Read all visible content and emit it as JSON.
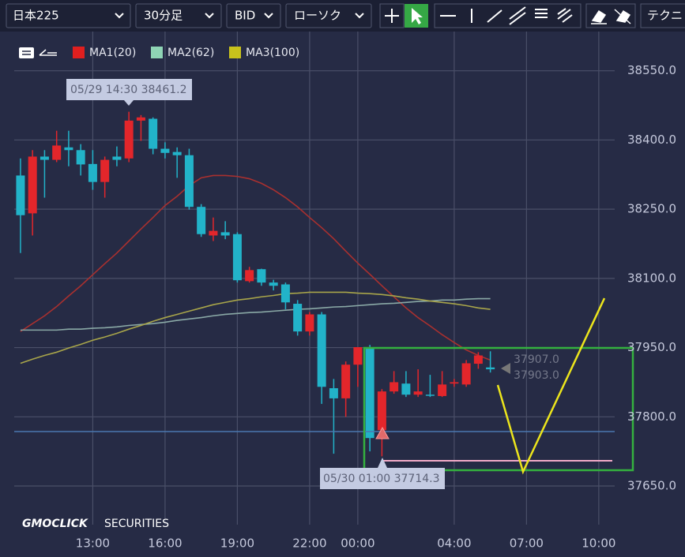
{
  "toolbar": {
    "symbol": "日本225",
    "timeframe": "30分足",
    "price_type": "BID",
    "chart_type": "ローソク",
    "technical": "テクニ"
  },
  "logo": {
    "brand": "GMOCLICK",
    "suffix": "SECURITIES"
  },
  "chart_data": {
    "type": "candlestick",
    "x": [
      -14,
      -13.5,
      -13,
      -12.5,
      -12,
      -11.5,
      -11,
      -10.5,
      -10,
      -9.5,
      -9,
      -8.5,
      -8,
      -7.5,
      -7,
      -6.5,
      -6,
      -5.5,
      -5,
      -4.5,
      -4,
      -3.5,
      -3,
      -2.5,
      -2,
      -1.5,
      -1,
      -0.5,
      0,
      0.5,
      1,
      1.5,
      2,
      2.5,
      3,
      3.5,
      4,
      4.5,
      5,
      5.5
    ],
    "open": [
      38323,
      38241,
      38364,
      38357,
      38384,
      38378,
      38348,
      38309,
      38364,
      38360,
      38442,
      38446,
      38381,
      38374,
      38367,
      38255,
      38193,
      38200,
      38196,
      38094,
      38120,
      38091,
      38087,
      38045,
      37985,
      38022,
      37862,
      37840,
      37913,
      37951,
      37771,
      37855,
      37872,
      37848,
      37848,
      37845,
      37872,
      37870,
      37915,
      37907
    ],
    "high": [
      38360,
      38378,
      38378,
      38420,
      38420,
      38391,
      38378,
      38364,
      38386,
      38461.2,
      38454,
      38449,
      38395,
      38384,
      38381,
      38261,
      38232,
      38224,
      38200,
      38125,
      38121,
      38097,
      38091,
      38053,
      38027,
      38027,
      37882,
      37920,
      37951,
      37956,
      37860,
      37899,
      37899,
      37903,
      37891,
      37899,
      37882,
      37923,
      37940,
      37942
    ],
    "low": [
      38155,
      38193,
      38275,
      38352,
      38343,
      38323,
      38292,
      38275,
      38343,
      38352,
      38398,
      38369,
      38360,
      38318,
      38249,
      38190,
      38181,
      38185,
      38091,
      38091,
      38084,
      38074,
      38033,
      37976,
      37976,
      37828,
      37720,
      37800,
      37865,
      37725,
      37714.3,
      37850,
      37843,
      37843,
      37843,
      37843,
      37865,
      37865,
      37904,
      37896
    ],
    "close": [
      38237,
      38364,
      38357,
      38388,
      38378,
      38347,
      38309,
      38357,
      38357,
      38442,
      38449,
      38381,
      38372,
      38367,
      38255,
      38196,
      38203,
      38193,
      38096,
      38118,
      38091,
      38084,
      38048,
      37985,
      38022,
      37865,
      37840,
      37913,
      37951,
      37754,
      37855,
      37875,
      37848,
      37855,
      37847,
      37870,
      37875,
      37916,
      37933,
      37903
    ],
    "up_color": "#e3262b",
    "down_color": "#22b3c9",
    "series": [
      {
        "name": "MA1(20)",
        "color": "#e01f1f",
        "line_color": "#a9302f",
        "values": [
          37985,
          38002,
          38019,
          38039,
          38062,
          38084,
          38108,
          38132,
          38155,
          38181,
          38207,
          38232,
          38258,
          38278,
          38301,
          38318,
          38323,
          38323,
          38321,
          38316,
          38306,
          38292,
          38275,
          38255,
          38232,
          38210,
          38186,
          38159,
          38133,
          38109,
          38084,
          38060,
          38036,
          38015,
          37997,
          37978,
          37961,
          37945,
          37933,
          37923
        ]
      },
      {
        "name": "MA2(62)",
        "color": "#8fd4b5",
        "line_color": "#8aa9a6",
        "values": [
          37988,
          37988,
          37988,
          37988,
          37990,
          37990,
          37992,
          37993,
          37995,
          37998,
          38000,
          38002,
          38005,
          38009,
          38012,
          38015,
          38019,
          38022,
          38024,
          38026,
          38027,
          38029,
          38031,
          38033,
          38034,
          38036,
          38038,
          38039,
          38041,
          38043,
          38045,
          38046,
          38048,
          38050,
          38051,
          38053,
          38053,
          38055,
          38056,
          38056
        ]
      },
      {
        "name": "MA3(100)",
        "color": "#c8c21c",
        "line_color": "#a8a54a",
        "values": [
          37916,
          37925,
          37933,
          37940,
          37949,
          37957,
          37966,
          37973,
          37981,
          37990,
          37998,
          38007,
          38015,
          38022,
          38029,
          38036,
          38043,
          38048,
          38053,
          38056,
          38060,
          38063,
          38067,
          38068,
          38070,
          38070,
          38070,
          38070,
          38068,
          38067,
          38065,
          38062,
          38058,
          38055,
          38051,
          38048,
          38045,
          38041,
          38036,
          38033
        ]
      }
    ],
    "xlim": [
      -14.26,
      10.66
    ],
    "xticks": [
      {
        "value": -11,
        "label": "13:00"
      },
      {
        "value": -8,
        "label": "16:00"
      },
      {
        "value": -5,
        "label": "19:00"
      },
      {
        "value": -2,
        "label": "22:00"
      },
      {
        "value": 0,
        "label": "00:00"
      },
      {
        "value": 4,
        "label": "04:00"
      },
      {
        "value": 7,
        "label": "07:00"
      },
      {
        "value": 10,
        "label": "10:00"
      }
    ],
    "ylim": [
      37609,
      38635
    ],
    "yticks": [
      {
        "value": 37650,
        "label": "37650.0"
      },
      {
        "value": 37800,
        "label": "37800.0"
      },
      {
        "value": 37950,
        "label": "37950.0"
      },
      {
        "value": 38100,
        "label": "38100.0"
      },
      {
        "value": 38250,
        "label": "38250.0"
      },
      {
        "value": 38400,
        "label": "38400.0"
      },
      {
        "value": 38550,
        "label": "38550.0"
      }
    ],
    "grid": true,
    "annotations": [
      "05/29 14:30 38461.2",
      "05/30 01:00 37714.3"
    ],
    "price_labels": [
      "37907.0",
      "37903.0"
    ]
  }
}
